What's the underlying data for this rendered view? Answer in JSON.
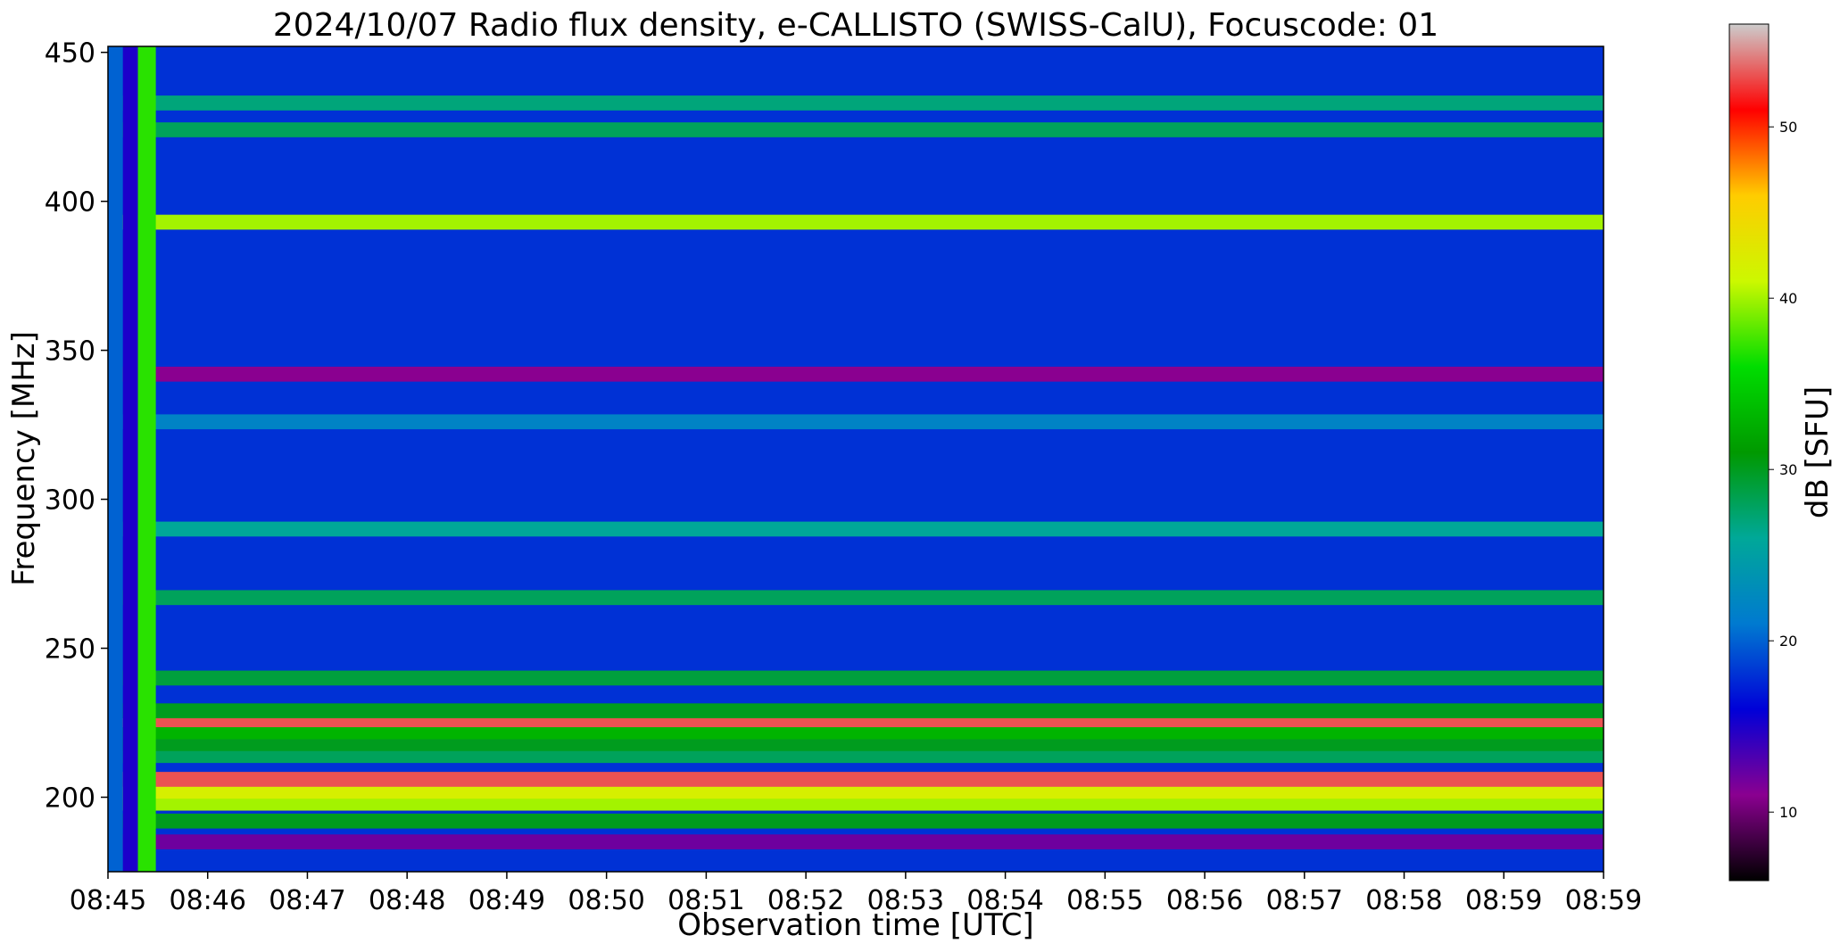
{
  "chart_data": {
    "type": "heatmap",
    "title": "2024/10/07  Radio flux density, e-CALLISTO (SWISS-CalU), Focuscode: 01",
    "xlabel": "Observation time [UTC]",
    "ylabel": "Frequency [MHz]",
    "x_ticks": [
      "08:45",
      "08:46",
      "08:47",
      "08:48",
      "08:49",
      "08:50",
      "08:51",
      "08:52",
      "08:53",
      "08:54",
      "08:55",
      "08:56",
      "08:57",
      "08:58",
      "08:59",
      "08:59"
    ],
    "x_range_minutes": [
      0,
      15
    ],
    "y_ticks": [
      200,
      250,
      300,
      350,
      400,
      450
    ],
    "y_range": [
      175,
      452
    ],
    "colorbar": {
      "label": "dB [SFU]",
      "ticks": [
        10,
        20,
        30,
        40,
        50
      ],
      "range": [
        6,
        56
      ],
      "colormap": "nipy_spectral",
      "colors": [
        "#000000",
        "#8a0090",
        "#0000d8",
        "#007ad0",
        "#00a898",
        "#009900",
        "#00dd00",
        "#ccf800",
        "#ffcc00",
        "#ff0000",
        "#cccccc"
      ]
    },
    "features": {
      "background_level_db": 18,
      "bands_db": [
        {
          "freq": 185,
          "db": 12
        },
        {
          "freq": 192,
          "db": 30
        },
        {
          "freq": 198,
          "db": 40
        },
        {
          "freq": 202,
          "db": 42
        },
        {
          "freq": 206,
          "db": 53
        },
        {
          "freq": 214,
          "db": 28
        },
        {
          "freq": 218,
          "db": 30
        },
        {
          "freq": 222,
          "db": 33
        },
        {
          "freq": 226,
          "db": 53
        },
        {
          "freq": 229,
          "db": 30
        },
        {
          "freq": 240,
          "db": 29
        },
        {
          "freq": 267,
          "db": 28
        },
        {
          "freq": 290,
          "db": 26
        },
        {
          "freq": 326,
          "db": 22
        },
        {
          "freq": 342,
          "db": 11
        },
        {
          "freq": 393,
          "db": 40
        },
        {
          "freq": 424,
          "db": 28
        },
        {
          "freq": 433,
          "db": 27
        }
      ],
      "calibration_columns_minutes": [
        {
          "start": 0.0,
          "end": 0.15,
          "db": 20
        },
        {
          "start": 0.15,
          "end": 0.3,
          "db": 15
        },
        {
          "start": 0.3,
          "end": 0.48,
          "db": 37
        }
      ]
    }
  }
}
